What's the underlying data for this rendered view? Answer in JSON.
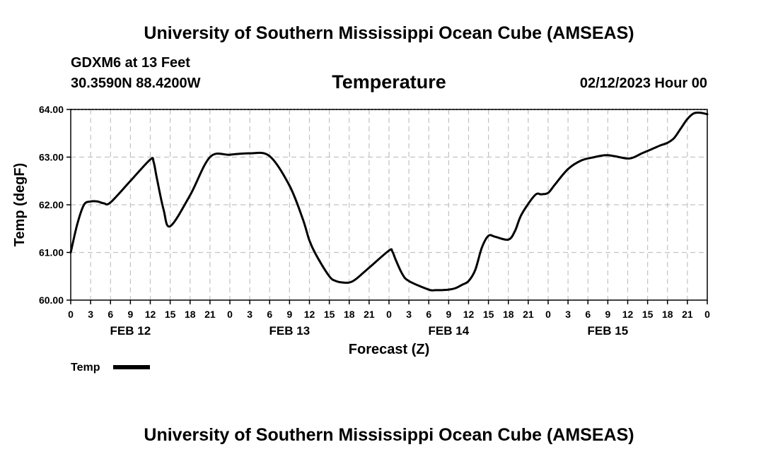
{
  "header": {
    "title": "University of Southern Mississippi Ocean Cube (AMSEAS)",
    "station": "GDXM6 at 13 Feet",
    "location": "30.3590N  88.4200W",
    "date": "02/12/2023 Hour 00"
  },
  "footer": {
    "title": "University of Southern Mississippi Ocean Cube (AMSEAS)"
  },
  "chart_data": {
    "type": "line",
    "title": "Temperature",
    "xlabel": "Forecast (Z)",
    "ylabel": "Temp (degF)",
    "ylim": [
      60.0,
      64.0
    ],
    "xlim": [
      0,
      96
    ],
    "y_ticks": [
      "60.00",
      "61.00",
      "62.00",
      "63.00",
      "64.00"
    ],
    "y_tick_values": [
      60,
      61,
      62,
      63,
      64
    ],
    "x_tick_labels": [
      "0",
      "3",
      "6",
      "9",
      "12",
      "15",
      "18",
      "21",
      "0",
      "3",
      "6",
      "9",
      "12",
      "15",
      "18",
      "21",
      "0",
      "3",
      "6",
      "9",
      "12",
      "15",
      "18",
      "21",
      "0",
      "3",
      "6",
      "9",
      "12",
      "15",
      "18",
      "21",
      "0"
    ],
    "day_labels": [
      {
        "label": "FEB 12",
        "at_hour": 9
      },
      {
        "label": "FEB 13",
        "at_hour": 33
      },
      {
        "label": "FEB 14",
        "at_hour": 57
      },
      {
        "label": "FEB 15",
        "at_hour": 81
      }
    ],
    "grid": true,
    "legend": {
      "position": "bottom-left",
      "entries": [
        "Temp"
      ]
    },
    "series": [
      {
        "name": "Temp",
        "color": "#000000",
        "x": [
          0,
          1,
          2,
          3,
          4,
          5,
          6,
          9,
          12,
          12.5,
          13,
          14,
          15,
          18,
          21,
          24,
          27,
          30,
          33,
          35,
          36,
          37,
          39,
          40,
          41,
          42,
          43,
          45,
          48,
          48.5,
          49,
          50,
          51,
          54,
          55,
          56,
          57,
          58,
          59,
          60,
          61,
          62,
          63,
          64,
          66,
          67,
          68,
          70,
          71,
          72,
          73,
          75,
          77,
          79,
          80,
          81,
          82,
          84,
          85,
          86,
          87,
          88,
          89,
          90,
          91,
          92,
          93,
          94,
          95,
          96
        ],
        "values": [
          61.0,
          61.6,
          62.0,
          62.07,
          62.07,
          62.03,
          62.05,
          62.5,
          62.95,
          62.9,
          62.55,
          61.9,
          61.55,
          62.2,
          63.0,
          63.05,
          63.08,
          63.02,
          62.4,
          61.7,
          61.25,
          60.95,
          60.5,
          60.4,
          60.37,
          60.37,
          60.44,
          60.68,
          61.04,
          61.02,
          60.85,
          60.55,
          60.4,
          60.22,
          60.21,
          60.21,
          60.22,
          60.25,
          60.32,
          60.4,
          60.63,
          61.1,
          61.35,
          61.33,
          61.27,
          61.45,
          61.8,
          62.2,
          62.22,
          62.25,
          62.42,
          62.75,
          62.93,
          63.0,
          63.03,
          63.04,
          63.02,
          62.97,
          63.0,
          63.07,
          63.13,
          63.19,
          63.25,
          63.3,
          63.4,
          63.6,
          63.8,
          63.92,
          63.93,
          63.9
        ]
      }
    ]
  }
}
